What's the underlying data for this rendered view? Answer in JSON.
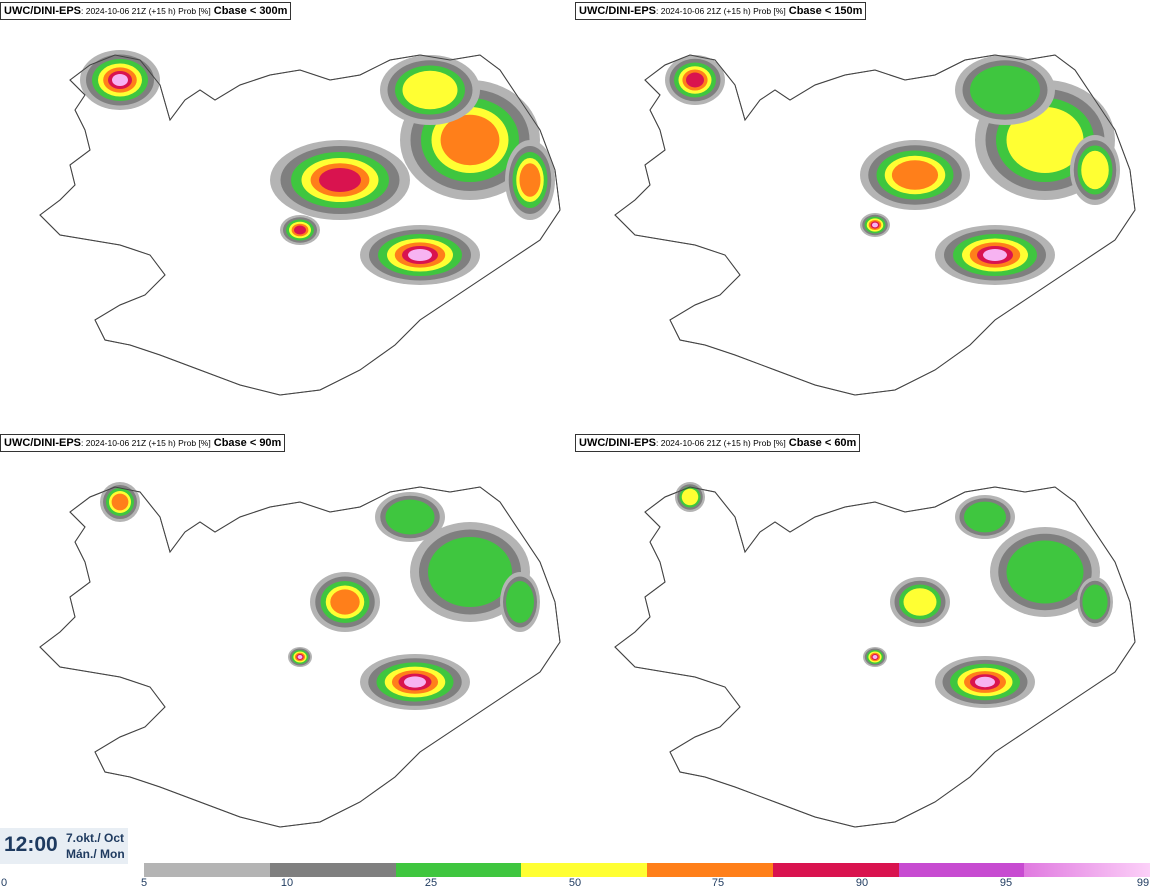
{
  "panels": [
    {
      "model": "UWC/DINI-EPS",
      "meta": ": 2024-10-06 21Z (+15 h) Prob [%]",
      "field": "Cbase < 300m"
    },
    {
      "model": "UWC/DINI-EPS",
      "meta": ": 2024-10-06 21Z (+15 h) Prob [%]",
      "field": "Cbase < 150m"
    },
    {
      "model": "UWC/DINI-EPS",
      "meta": ": 2024-10-06 21Z (+15 h) Prob [%]",
      "field": "Cbase < 90m"
    },
    {
      "model": "UWC/DINI-EPS",
      "meta": ": 2024-10-06 21Z (+15 h) Prob [%]",
      "field": "Cbase < 60m"
    }
  ],
  "valid_time": {
    "time": "12:00",
    "date_line1": "7.okt./ Oct",
    "date_line2": "Mán./ Mon"
  },
  "legend": {
    "ticks": [
      "0",
      "5",
      "10",
      "25",
      "50",
      "75",
      "90",
      "95",
      "99"
    ],
    "colors": [
      "#b4b4b4",
      "#7f7f7f",
      "#3fc63f",
      "#ffff33",
      "#ff7f1a",
      "#d9134f",
      "#c74bd1",
      "#f7b3f2"
    ]
  }
}
